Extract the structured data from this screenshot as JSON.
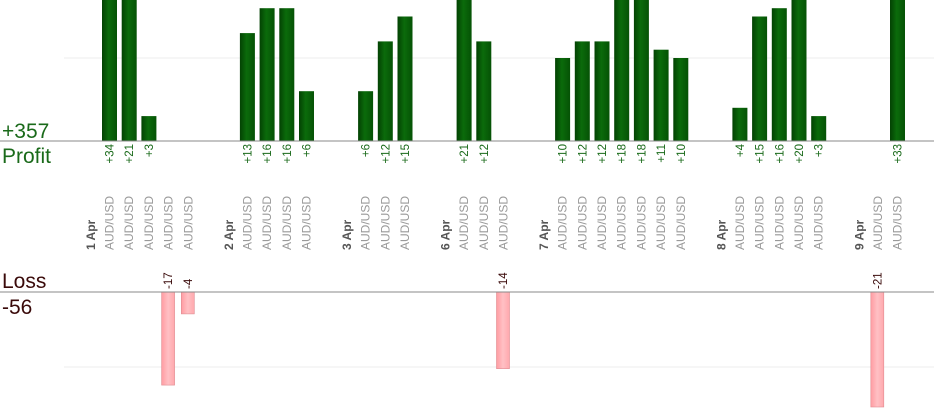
{
  "summary": {
    "profit_total": "+357",
    "profit_label": "Profit",
    "loss_label": "Loss",
    "loss_total": "-56"
  },
  "colors": {
    "profit_bar": "#0b6b0b",
    "profit_bar_dark": "#034203",
    "profit_text": "#1a6a1a",
    "loss_bar": "#ffb0b4",
    "loss_text": "#3a0a0a",
    "category_text": "#999999",
    "date_text": "#555555"
  },
  "chart_data": {
    "type": "bar",
    "title": "",
    "series": [
      {
        "name": "Profit"
      },
      {
        "name": "Loss"
      }
    ],
    "groups": [
      {
        "date": "1 Apr",
        "trades": [
          {
            "pair": "AUD/USD",
            "profit": 34
          },
          {
            "pair": "AUD/USD",
            "profit": 21
          },
          {
            "pair": "AUD/USD",
            "profit": 3
          },
          {
            "pair": "AUD/USD",
            "loss": -17
          },
          {
            "pair": "AUD/USD",
            "loss": -4
          }
        ]
      },
      {
        "date": "2 Apr",
        "trades": [
          {
            "pair": "AUD/USD",
            "profit": 13
          },
          {
            "pair": "AUD/USD",
            "profit": 16
          },
          {
            "pair": "AUD/USD",
            "profit": 16
          },
          {
            "pair": "AUD/USD",
            "profit": 6
          }
        ]
      },
      {
        "date": "3 Apr",
        "trades": [
          {
            "pair": "AUD/USD",
            "profit": 6
          },
          {
            "pair": "AUD/USD",
            "profit": 12
          },
          {
            "pair": "AUD/USD",
            "profit": 15
          }
        ]
      },
      {
        "date": "6 Apr",
        "trades": [
          {
            "pair": "AUD/USD",
            "profit": 21
          },
          {
            "pair": "AUD/USD",
            "profit": 12
          },
          {
            "pair": "AUD/USD",
            "loss": -14
          }
        ]
      },
      {
        "date": "7 Apr",
        "trades": [
          {
            "pair": "AUD/USD",
            "profit": 10
          },
          {
            "pair": "AUD/USD",
            "profit": 12
          },
          {
            "pair": "AUD/USD",
            "profit": 12
          },
          {
            "pair": "AUD/USD",
            "profit": 18
          },
          {
            "pair": "AUD/USD",
            "profit": 18
          },
          {
            "pair": "AUD/USD",
            "profit": 11
          },
          {
            "pair": "AUD/USD",
            "profit": 10
          }
        ]
      },
      {
        "date": "8 Apr",
        "trades": [
          {
            "pair": "AUD/USD",
            "profit": 4
          },
          {
            "pair": "AUD/USD",
            "profit": 15
          },
          {
            "pair": "AUD/USD",
            "profit": 16
          },
          {
            "pair": "AUD/USD",
            "profit": 20
          },
          {
            "pair": "AUD/USD",
            "profit": 3
          }
        ]
      },
      {
        "date": "9 Apr",
        "trades": [
          {
            "pair": "AUD/USD",
            "loss": -21
          },
          {
            "pair": "AUD/USD",
            "profit": 33
          }
        ]
      }
    ],
    "profit_scale_max": 17,
    "loss_scale_max": 21,
    "grid": true,
    "legend": "none"
  }
}
